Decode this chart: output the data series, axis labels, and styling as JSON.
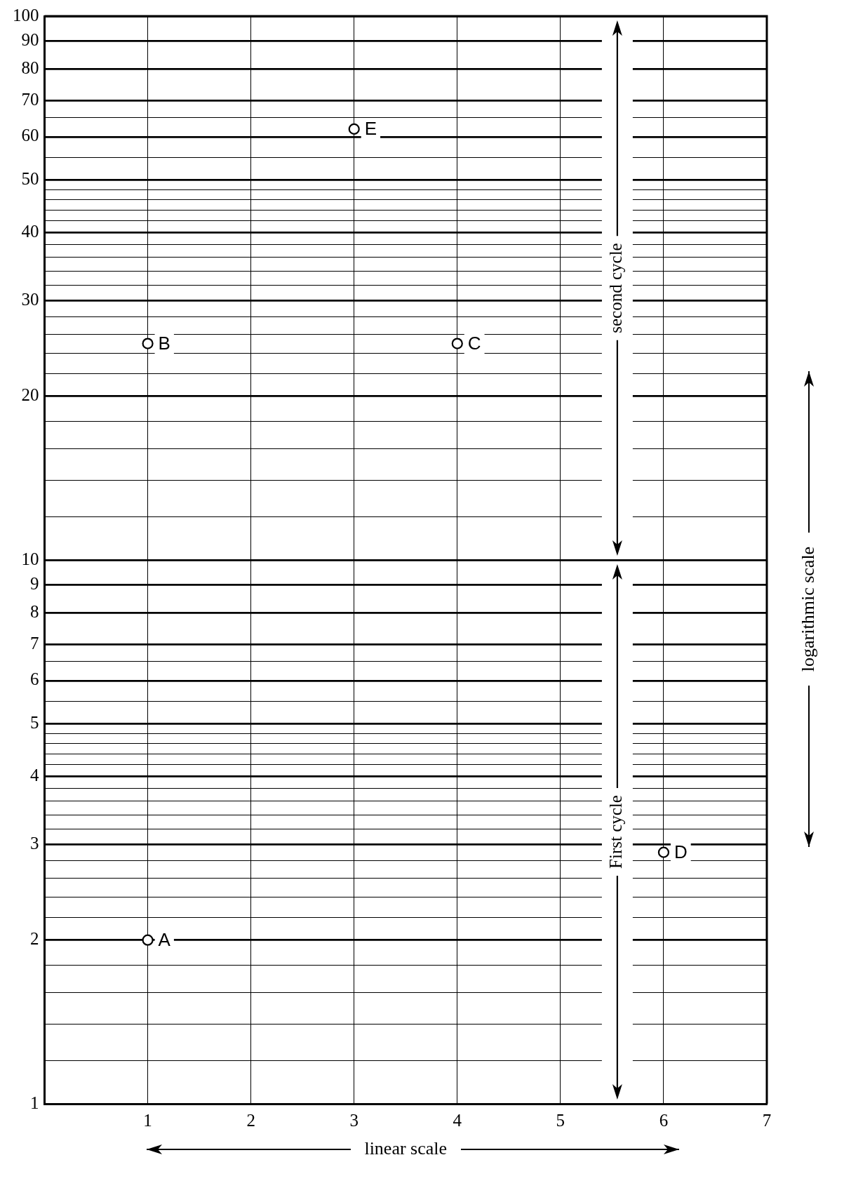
{
  "chart_data": {
    "type": "scatter",
    "xlabel": "linear scale",
    "ylabel": "logarithmic scale",
    "x": [
      1,
      1,
      4,
      6,
      3
    ],
    "values": [
      2,
      25,
      25,
      2.9,
      62
    ],
    "color": "#000000",
    "marker": "circle",
    "xlim": [
      0,
      7
    ],
    "xticks": [
      1,
      2,
      3,
      4,
      5,
      6,
      7
    ],
    "ylim": [
      1,
      100
    ],
    "log": "y",
    "grid": true,
    "legend": false,
    "yticks": [
      1,
      {
        "value": 1.2,
        "label": null
      },
      {
        "value": 1.4,
        "label": null
      },
      {
        "value": 1.6,
        "label": null
      },
      {
        "value": 1.8,
        "label": null
      },
      2,
      {
        "value": 2.2,
        "label": null
      },
      {
        "value": 2.4,
        "label": null
      },
      {
        "value": 2.6,
        "label": null
      },
      {
        "value": 2.8,
        "label": null
      },
      3,
      {
        "value": 3.2,
        "label": null
      },
      {
        "value": 3.4,
        "label": null
      },
      {
        "value": 3.6,
        "label": null
      },
      {
        "value": 3.8,
        "label": null
      },
      4,
      {
        "value": 4.2,
        "label": null
      },
      {
        "value": 4.4,
        "label": null
      },
      {
        "value": 4.6,
        "label": null
      },
      {
        "value": 4.8,
        "label": null
      },
      5,
      {
        "value": 5.5,
        "label": null
      },
      6,
      {
        "value": 6.5,
        "label": null
      },
      7,
      8,
      9,
      10,
      {
        "value": 12,
        "label": null
      },
      {
        "value": 14,
        "label": null
      },
      {
        "value": 16,
        "label": null
      },
      {
        "value": 18,
        "label": null
      },
      20,
      {
        "value": 22,
        "label": null
      },
      {
        "value": 24,
        "label": null
      },
      {
        "value": 26,
        "label": null
      },
      {
        "value": 28,
        "label": null
      },
      30,
      {
        "value": 32,
        "label": null
      },
      {
        "value": 34,
        "label": null
      },
      {
        "value": 36,
        "label": null
      },
      {
        "value": 38,
        "label": null
      },
      40,
      {
        "value": 42,
        "label": null
      },
      {
        "value": 44,
        "label": null
      },
      {
        "value": 46,
        "label": null
      },
      {
        "value": 48,
        "label": null
      },
      50,
      {
        "value": 55,
        "label": null
      },
      60,
      {
        "value": 65,
        "label": null
      },
      70,
      80,
      90,
      100
    ],
    "bands": [
      {
        "axis": "y",
        "from": 10,
        "to": 100,
        "label": "second cycle"
      },
      {
        "axis": "y",
        "from": 1,
        "to": 10,
        "label": "First cycle"
      }
    ],
    "annotations": [
      {
        "text": "A",
        "x": 1,
        "y": 2
      },
      {
        "text": "B",
        "x": 1,
        "y": 25
      },
      {
        "text": "C",
        "x": 4,
        "y": 25
      },
      {
        "text": "D",
        "x": 6,
        "y": 2.9
      },
      {
        "text": "E",
        "x": 3,
        "y": 62
      }
    ]
  }
}
